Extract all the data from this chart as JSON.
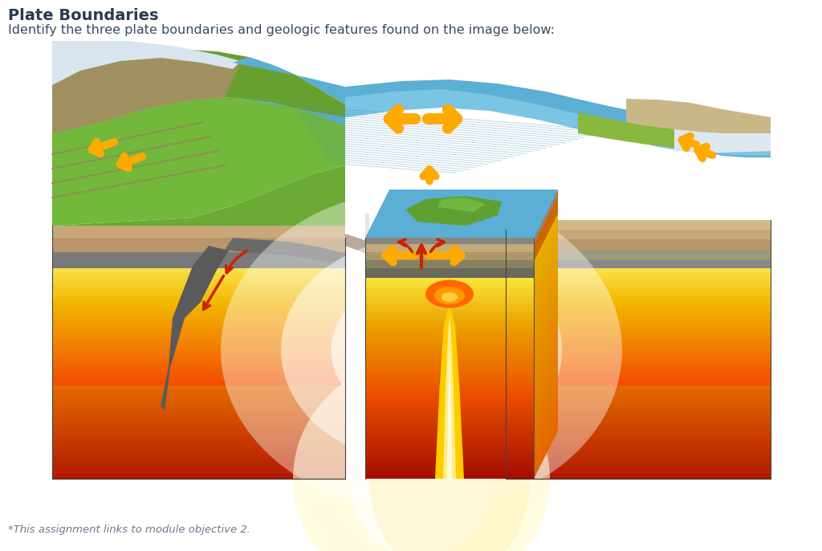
{
  "title": "Plate Boundaries",
  "subtitle": "Identify the three plate boundaries and geologic features found on the image below:",
  "footnote": "*This assignment links to module objective 2.",
  "title_color": "#2b3a52",
  "subtitle_color": "#3a4a62",
  "footnote_color": "#6b7a8d",
  "background_color": "#ffffff",
  "title_fontsize": 14,
  "subtitle_fontsize": 11.5,
  "footnote_fontsize": 9.5
}
